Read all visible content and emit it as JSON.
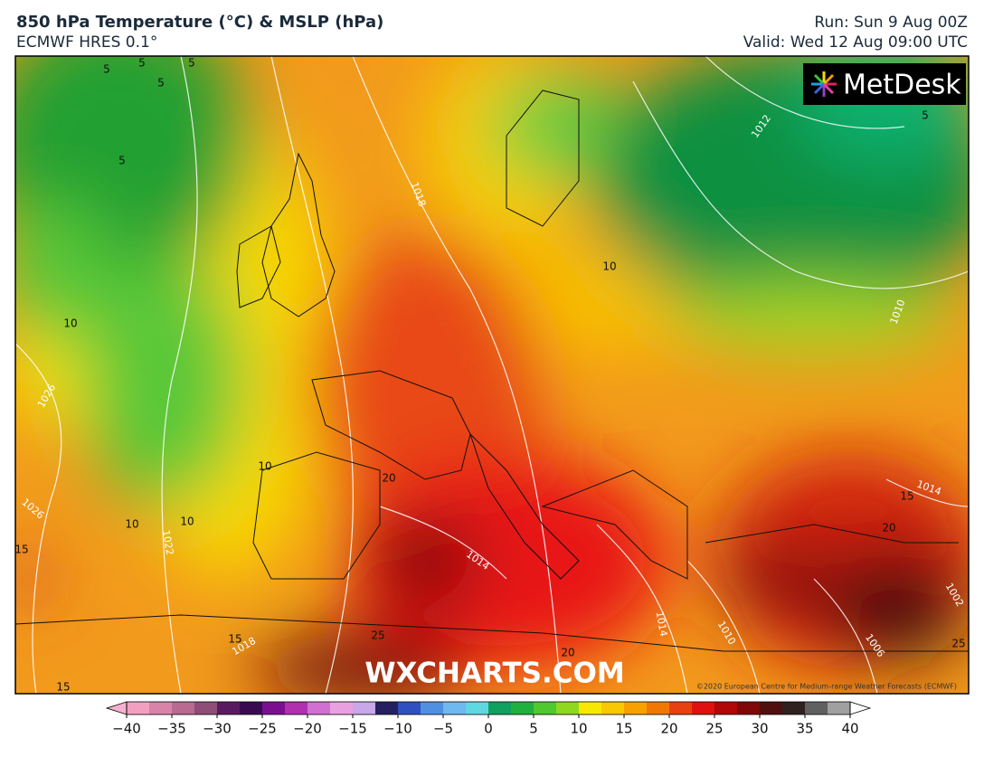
{
  "header": {
    "title": "850 hPa Temperature (°C) & MSLP (hPa)",
    "model": "ECMWF HRES 0.1°",
    "run": "Run: Sun 9 Aug 00Z",
    "valid": "Valid: Wed 12 Aug 09:00 UTC"
  },
  "logo": "MetDesk",
  "watermark": "WXCHARTS.COM",
  "copyright": "©2020 European Centre for Medium-range Weather Forecasts (ECMWF)",
  "isotherm_labels": [
    "5",
    "5",
    "5",
    "5",
    "5",
    "10",
    "10",
    "10",
    "10",
    "10",
    "5",
    "15",
    "15",
    "15",
    "15",
    "20",
    "20",
    "20",
    "25",
    "25"
  ],
  "isobar_labels": [
    "1018",
    "1012",
    "1026",
    "1026",
    "1022",
    "1018",
    "1014",
    "1014",
    "1010",
    "1006",
    "1002",
    "1014",
    "1010"
  ],
  "colorbar": {
    "ticks": [
      {
        "value": -40,
        "label": "−40"
      },
      {
        "value": -35,
        "label": "−35"
      },
      {
        "value": -30,
        "label": "−30"
      },
      {
        "value": -25,
        "label": "−25"
      },
      {
        "value": -20,
        "label": "−20"
      },
      {
        "value": -15,
        "label": "−15"
      },
      {
        "value": -10,
        "label": "−10"
      },
      {
        "value": -5,
        "label": "−5"
      },
      0,
      5,
      10,
      15,
      20,
      25,
      30,
      35,
      40
    ],
    "lim": [
      -40,
      40
    ],
    "colors": [
      "#f2a0c0",
      "#d884a8",
      "#b86a90",
      "#8e4e78",
      "#5a1a60",
      "#3a0a50",
      "#7a1090",
      "#b030b0",
      "#d070d0",
      "#e8a0e0",
      "#c8a8e8",
      "#262060",
      "#3050c0",
      "#5090e0",
      "#70b8f0",
      "#60d8e0",
      "#10a060",
      "#20b040",
      "#50c830",
      "#90d820",
      "#f8e800",
      "#f8c800",
      "#f8a000",
      "#f07800",
      "#e84010",
      "#e01010",
      "#b00808",
      "#800808",
      "#501010",
      "#302020",
      "#606060",
      "#a0a0a0"
    ],
    "under_color": "#f8b0d0",
    "over_color": "#ffffff"
  }
}
